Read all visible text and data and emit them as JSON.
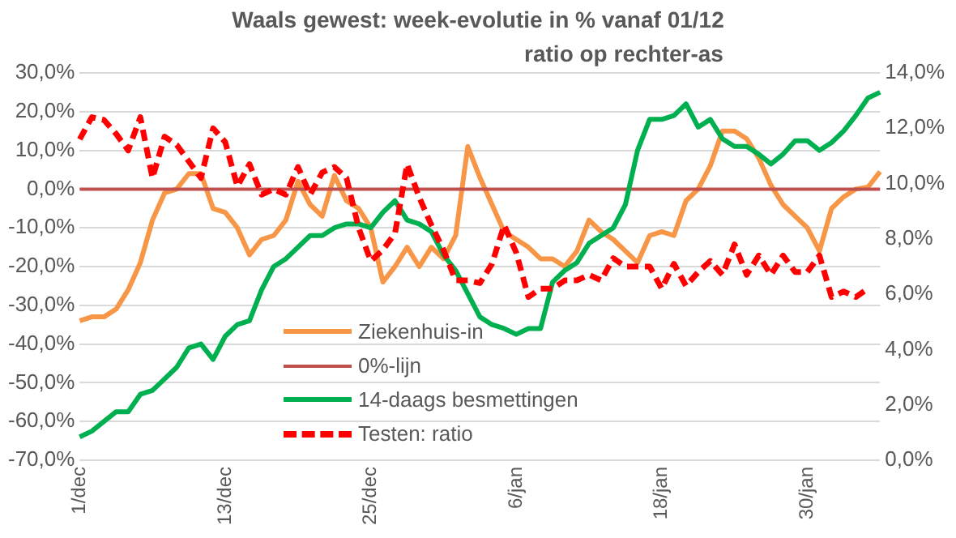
{
  "chart_data": {
    "type": "line",
    "title": "Waals gewest: week-evolutie in % vanaf 01/12",
    "subtitle": "ratio op rechter-as",
    "categories": [
      "1/dec",
      null,
      null,
      null,
      null,
      null,
      null,
      null,
      null,
      null,
      null,
      null,
      "13/dec",
      null,
      null,
      null,
      null,
      null,
      null,
      null,
      null,
      null,
      null,
      null,
      "25/dec",
      null,
      null,
      null,
      null,
      null,
      null,
      null,
      null,
      null,
      null,
      null,
      "6/jan",
      null,
      null,
      null,
      null,
      null,
      null,
      null,
      null,
      null,
      null,
      null,
      "18/jan",
      null,
      null,
      null,
      null,
      null,
      null,
      null,
      null,
      null,
      null,
      null,
      "30/jan",
      null,
      null,
      null,
      null,
      null,
      null
    ],
    "series": [
      {
        "name": "Ziekenhuis-in",
        "color": "#f79646",
        "values": [
          -34,
          -33,
          -33,
          -31,
          -26,
          -19,
          -8,
          -1,
          0,
          4,
          4,
          -5,
          -6,
          -10,
          -17,
          -13,
          -12,
          -8,
          2,
          -4,
          -7,
          3.5,
          -3,
          -5,
          -10,
          -24,
          -20,
          -15,
          -20,
          -15,
          -18,
          -12,
          11,
          3,
          -4,
          -11,
          -13,
          -15,
          -18,
          -18,
          -20,
          -16,
          -8,
          -11,
          -13,
          -16,
          -19,
          -12,
          -11,
          -12,
          -3,
          0,
          6,
          15,
          15,
          13,
          8,
          1,
          -4,
          -7,
          -10,
          -16,
          -5,
          -2,
          0,
          0.5,
          4.5
        ]
      },
      {
        "name": "0%-lijn",
        "color": "#c0504d",
        "values": [
          0,
          0,
          0,
          0,
          0,
          0,
          0,
          0,
          0,
          0,
          0,
          0,
          0,
          0,
          0,
          0,
          0,
          0,
          0,
          0,
          0,
          0,
          0,
          0,
          0,
          0,
          0,
          0,
          0,
          0,
          0,
          0,
          0,
          0,
          0,
          0,
          0,
          0,
          0,
          0,
          0,
          0,
          0,
          0,
          0,
          0,
          0,
          0,
          0,
          0,
          0,
          0,
          0,
          0,
          0,
          0,
          0,
          0,
          0,
          0,
          0,
          0,
          0,
          0,
          0,
          0,
          0
        ]
      },
      {
        "name": "14-daags besmettingen",
        "color": "#00b050",
        "values": [
          -64,
          -62.5,
          -60,
          -57.5,
          -57.5,
          -53,
          -52,
          -49,
          -46,
          -41,
          -40,
          -44,
          -38,
          -35,
          -34,
          -26,
          -20,
          -18,
          -15,
          -12,
          -12,
          -10,
          -9,
          -9,
          -10,
          -6,
          -3,
          -8,
          -9,
          -11,
          -17,
          -21,
          -27,
          -33,
          -35,
          -36,
          -37.5,
          -36,
          -36,
          -24,
          -21,
          -19,
          -14,
          -12,
          -10,
          -4,
          10,
          18,
          18,
          19,
          22,
          16,
          18,
          13,
          11,
          11,
          9,
          6.5,
          9,
          12.5,
          12.5,
          10,
          12,
          15,
          19,
          23.5,
          25
        ]
      },
      {
        "name": "Testen: ratio",
        "color": "#ff0000",
        "axis": "y2",
        "line_style": "dashed",
        "values": [
          11.6,
          12.4,
          12.3,
          11.8,
          11.2,
          12.4,
          10.2,
          11.7,
          11.4,
          10.8,
          10.2,
          12.0,
          11.5,
          9.9,
          10.7,
          9.6,
          9.8,
          9.6,
          10.6,
          9.6,
          10.4,
          10.6,
          10.2,
          8.4,
          7.2,
          7.6,
          8.2,
          10.7,
          9.5,
          8.5,
          7.6,
          6.5,
          6.5,
          6.4,
          7.1,
          8.5,
          7.5,
          5.9,
          6.2,
          6.2,
          6.5,
          6.5,
          6.7,
          6.5,
          7.3,
          7.0,
          7.0,
          7.0,
          6.2,
          7.1,
          6.3,
          6.8,
          7.2,
          6.7,
          7.8,
          6.7,
          7.4,
          6.7,
          7.4,
          6.8,
          6.8,
          7.4,
          5.9,
          6.1,
          5.9,
          6.2,
          null
        ]
      }
    ],
    "ylim": [
      -70,
      30
    ],
    "yticks": [
      {
        "value": -70,
        "label": "-70,0%"
      },
      {
        "value": -60,
        "label": "-60,0%"
      },
      {
        "value": -50,
        "label": "-50,0%"
      },
      {
        "value": -40,
        "label": "-40,0%"
      },
      {
        "value": -30,
        "label": "-30,0%"
      },
      {
        "value": -20,
        "label": "-20,0%"
      },
      {
        "value": -10,
        "label": "-10,0%"
      },
      {
        "value": 0,
        "label": "0,0%"
      },
      {
        "value": 10,
        "label": "10,0%"
      },
      {
        "value": 20,
        "label": "20,0%"
      },
      {
        "value": 30,
        "label": "30,0%"
      }
    ],
    "y2lim": [
      0,
      14
    ],
    "y2ticks": [
      {
        "value": 0,
        "label": "0,0%"
      },
      {
        "value": 2,
        "label": "2,0%"
      },
      {
        "value": 4,
        "label": "4,0%"
      },
      {
        "value": 6,
        "label": "6,0%"
      },
      {
        "value": 8,
        "label": "8,0%"
      },
      {
        "value": 10,
        "label": "10,0%"
      },
      {
        "value": 12,
        "label": "12,0%"
      },
      {
        "value": 14,
        "label": "14,0%"
      }
    ],
    "grid": "y",
    "legend": "bottom",
    "marker": "none"
  }
}
